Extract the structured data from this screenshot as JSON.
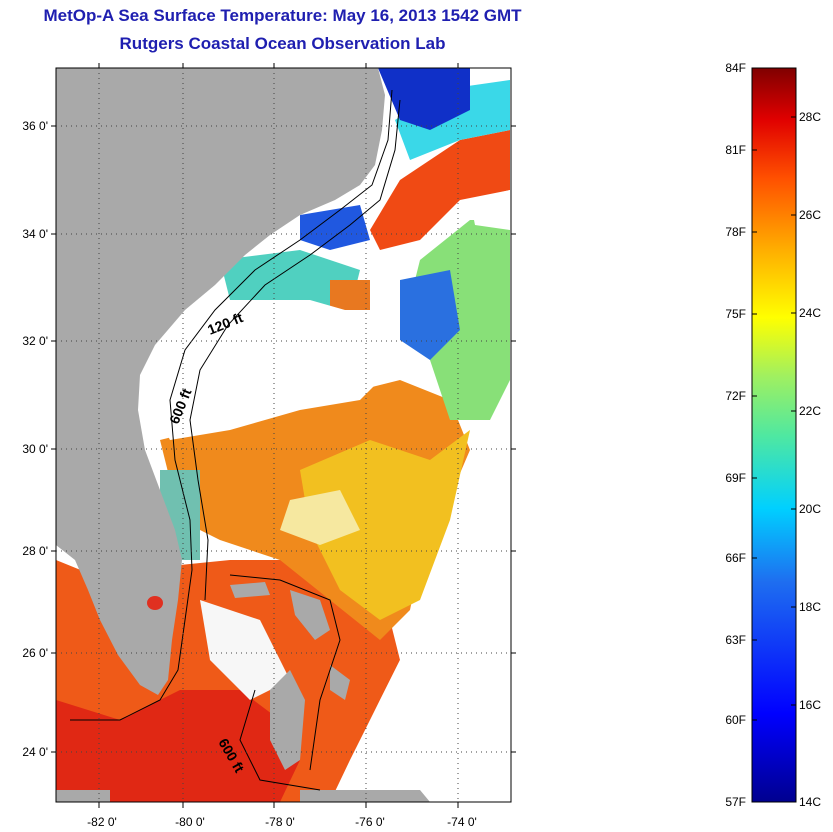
{
  "title": "MetOp-A Sea Surface Temperature:  May 16, 2013 1542 GMT",
  "subtitle": "Rutgers Coastal Ocean Observation Lab",
  "map": {
    "lat_ticks": [
      "36 0'",
      "34 0'",
      "32 0'",
      "30 0'",
      "28 0'",
      "26 0'",
      "24 0'"
    ],
    "lon_ticks": [
      "-82 0'",
      "-80 0'",
      "-78 0'",
      "-76 0'",
      "-74 0'"
    ],
    "contour_labels": [
      "120 ft",
      "600 ft",
      "600 ft"
    ]
  },
  "colorbar": {
    "f_labels": [
      "84F",
      "81F",
      "78F",
      "75F",
      "72F",
      "69F",
      "66F",
      "63F",
      "60F",
      "57F"
    ],
    "c_labels": [
      "28C",
      "26C",
      "24C",
      "22C",
      "20C",
      "18C",
      "16C",
      "14C"
    ]
  },
  "colors": {
    "title": "#1f1fb0",
    "land": "#a9a9a9",
    "cloud": "#ffffff",
    "warm": "#e83a10",
    "hot": "#d81010",
    "orange": "#f07818",
    "yellow": "#f0d020",
    "green": "#88e070",
    "cyan": "#40e0e0",
    "blue": "#2050e0",
    "deep_blue": "#1020b0"
  }
}
